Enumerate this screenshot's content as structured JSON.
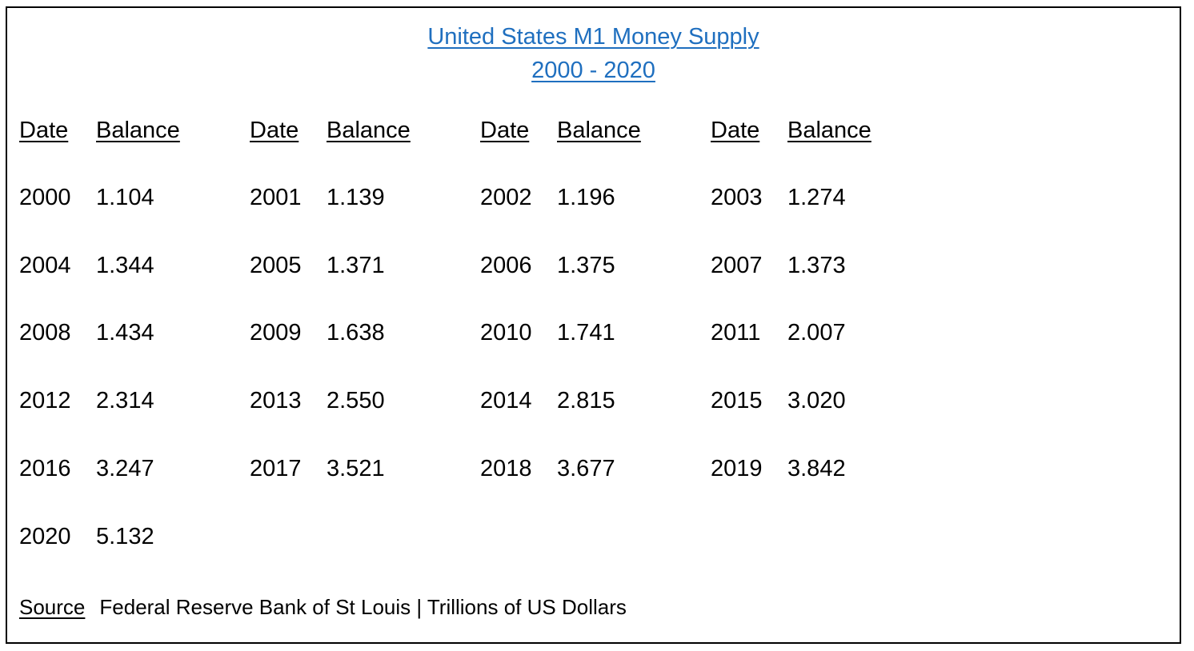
{
  "title": {
    "line1": "United States M1 Money Supply",
    "line2": "2000 - 2020",
    "link_color": "#1f6fbf"
  },
  "table": {
    "headers": [
      {
        "date": "Date",
        "balance": "Balance"
      },
      {
        "date": "Date",
        "balance": "Balance"
      },
      {
        "date": "Date",
        "balance": "Balance"
      },
      {
        "date": "Date",
        "balance": "Balance"
      }
    ],
    "rows": [
      [
        {
          "date": "2000",
          "balance": "1.104"
        },
        {
          "date": "2001",
          "balance": "1.139"
        },
        {
          "date": "2002",
          "balance": "1.196"
        },
        {
          "date": "2003",
          "balance": "1.274"
        }
      ],
      [
        {
          "date": "2004",
          "balance": "1.344"
        },
        {
          "date": "2005",
          "balance": "1.371"
        },
        {
          "date": "2006",
          "balance": "1.375"
        },
        {
          "date": "2007",
          "balance": "1.373"
        }
      ],
      [
        {
          "date": "2008",
          "balance": "1.434"
        },
        {
          "date": "2009",
          "balance": "1.638"
        },
        {
          "date": "2010",
          "balance": "1.741"
        },
        {
          "date": "2011",
          "balance": "2.007"
        }
      ],
      [
        {
          "date": "2012",
          "balance": "2.314"
        },
        {
          "date": "2013",
          "balance": "2.550"
        },
        {
          "date": "2014",
          "balance": "2.815"
        },
        {
          "date": "2015",
          "balance": "3.020"
        }
      ],
      [
        {
          "date": "2016",
          "balance": "3.247"
        },
        {
          "date": "2017",
          "balance": "3.521"
        },
        {
          "date": "2018",
          "balance": "3.677"
        },
        {
          "date": "2019",
          "balance": "3.842"
        }
      ],
      [
        {
          "date": "2020",
          "balance": "5.132"
        }
      ]
    ]
  },
  "source": {
    "label": "Source",
    "text": "Federal Reserve Bank of St Louis | Trillions of US Dollars"
  }
}
